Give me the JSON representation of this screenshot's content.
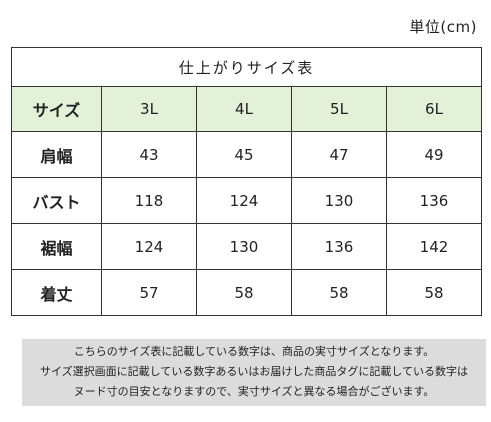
{
  "unit_label": "単位(cm)",
  "table": {
    "title": "仕上がりサイズ表",
    "header": {
      "label": "サイズ",
      "sizes": [
        "3L",
        "4L",
        "5L",
        "6L"
      ]
    },
    "rows": [
      {
        "label": "肩幅",
        "values": [
          "43",
          "45",
          "47",
          "49"
        ]
      },
      {
        "label": "バスト",
        "values": [
          "118",
          "124",
          "130",
          "136"
        ]
      },
      {
        "label": "裾幅",
        "values": [
          "124",
          "130",
          "136",
          "142"
        ]
      },
      {
        "label": "着丈",
        "values": [
          "57",
          "58",
          "58",
          "58"
        ]
      }
    ]
  },
  "note": {
    "lines": [
      "こちらのサイズ表に記載している数字は、商品の実寸サイズとなります。",
      "サイズ選択画面に記載している数字あるいはお届けした商品タグに記載している数字は",
      "ヌード寸の目安となりますので、実寸サイズと異なる場合がございます。"
    ]
  },
  "colors": {
    "header_bg": "#e3f1d9",
    "note_bg": "#dcdcdc",
    "border": "#333333"
  }
}
